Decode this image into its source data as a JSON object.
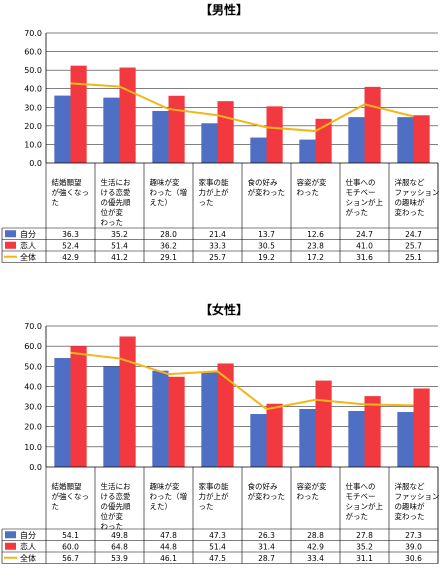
{
  "colors": {
    "self": "#4F6FC4",
    "lover": "#F2393F",
    "all": "#F4B519",
    "grid": "#000000"
  },
  "chart_data": [
    {
      "type": "bar",
      "title": "【男性】",
      "ylim": [
        0,
        70
      ],
      "yticks": [
        "0.0",
        "10.0",
        "20.0",
        "30.0",
        "40.0",
        "50.0",
        "60.0",
        "70.0"
      ],
      "categories": [
        [
          "結婚願望",
          "が強くなっ",
          "た"
        ],
        [
          "生活にお",
          "ける恋愛",
          "の優先順",
          "位が変",
          "わった"
        ],
        [
          "趣味が変",
          "わった（増",
          "えた）"
        ],
        [
          "家事の能",
          "力が上が",
          "った"
        ],
        [
          "食の好み",
          "が変わった"
        ],
        [
          "容姿が変",
          "わった"
        ],
        [
          "仕事への",
          "モチベー",
          "ションが上",
          "がった"
        ],
        [
          "洋服など",
          "ファッション",
          "の趣味が",
          "変わった"
        ]
      ],
      "series": [
        {
          "name": "自分",
          "kind": "bar",
          "values": [
            36.3,
            35.2,
            28.0,
            21.4,
            13.7,
            12.6,
            24.7,
            24.7
          ],
          "labels": [
            "36.3",
            "35.2",
            "28.0",
            "21.4",
            "13.7",
            "12.6",
            "24.7",
            "24.7"
          ]
        },
        {
          "name": "恋人",
          "kind": "bar",
          "values": [
            52.4,
            51.4,
            36.2,
            33.3,
            30.5,
            23.8,
            41.0,
            25.7
          ],
          "labels": [
            "52.4",
            "51.4",
            "36.2",
            "33.3",
            "30.5",
            "23.8",
            "41.0",
            "25.7"
          ]
        },
        {
          "name": "全体",
          "kind": "line",
          "values": [
            42.9,
            41.2,
            29.1,
            25.7,
            19.2,
            17.2,
            31.6,
            25.1
          ],
          "labels": [
            "42.9",
            "41.2",
            "29.1",
            "25.7",
            "19.2",
            "17.2",
            "31.6",
            "25.1"
          ]
        }
      ]
    },
    {
      "type": "bar",
      "title": "【女性】",
      "ylim": [
        0,
        70
      ],
      "yticks": [
        "0.0",
        "10.0",
        "20.0",
        "30.0",
        "40.0",
        "50.0",
        "60.0",
        "70.0"
      ],
      "categories": [
        [
          "結婚願望",
          "が強くなっ",
          "た"
        ],
        [
          "生活にお",
          "ける恋愛",
          "の優先順",
          "位が変",
          "わった"
        ],
        [
          "趣味が変",
          "わった（増",
          "えた）"
        ],
        [
          "家事の能",
          "力が上が",
          "った"
        ],
        [
          "食の好み",
          "が変わった"
        ],
        [
          "容姿が変",
          "わった"
        ],
        [
          "仕事への",
          "モチベー",
          "ションが上",
          "がった"
        ],
        [
          "洋服など",
          "ファッション",
          "の趣味が",
          "変わった"
        ]
      ],
      "series": [
        {
          "name": "自分",
          "kind": "bar",
          "values": [
            54.1,
            49.8,
            47.8,
            47.3,
            26.3,
            28.8,
            27.8,
            27.3
          ],
          "labels": [
            "54.1",
            "49.8",
            "47.8",
            "47.3",
            "26.3",
            "28.8",
            "27.8",
            "27.3"
          ]
        },
        {
          "name": "恋人",
          "kind": "bar",
          "values": [
            60.0,
            64.8,
            44.8,
            51.4,
            31.4,
            42.9,
            35.2,
            39.0
          ],
          "labels": [
            "60.0",
            "64.8",
            "44.8",
            "51.4",
            "31.4",
            "42.9",
            "35.2",
            "39.0"
          ]
        },
        {
          "name": "全体",
          "kind": "line",
          "values": [
            56.7,
            53.9,
            46.1,
            47.5,
            28.7,
            33.4,
            31.1,
            30.6
          ],
          "labels": [
            "56.7",
            "53.9",
            "46.1",
            "47.5",
            "28.7",
            "33.4",
            "31.1",
            "30.6"
          ]
        }
      ]
    }
  ]
}
